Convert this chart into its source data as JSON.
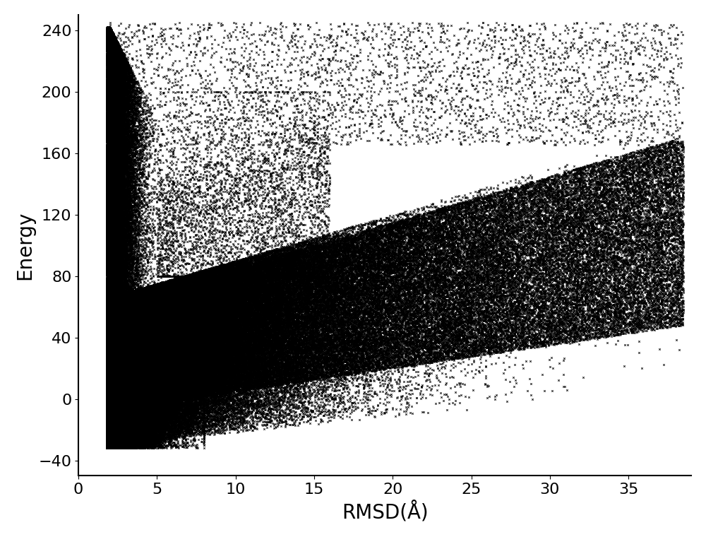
{
  "title": "",
  "xlabel": "RMSD(Å)",
  "ylabel": "Energy",
  "xlim": [
    0,
    39
  ],
  "ylim": [
    -50,
    250
  ],
  "xticks": [
    0,
    5,
    10,
    15,
    20,
    25,
    30,
    35
  ],
  "yticks": [
    -40,
    0,
    40,
    80,
    120,
    160,
    200,
    240
  ],
  "marker": "x",
  "marker_color": "#000000",
  "marker_size": 3,
  "marker_linewidth": 0.6,
  "background_color": "#ffffff",
  "seed": 42,
  "xlabel_fontsize": 20,
  "ylabel_fontsize": 20,
  "tick_fontsize": 16
}
